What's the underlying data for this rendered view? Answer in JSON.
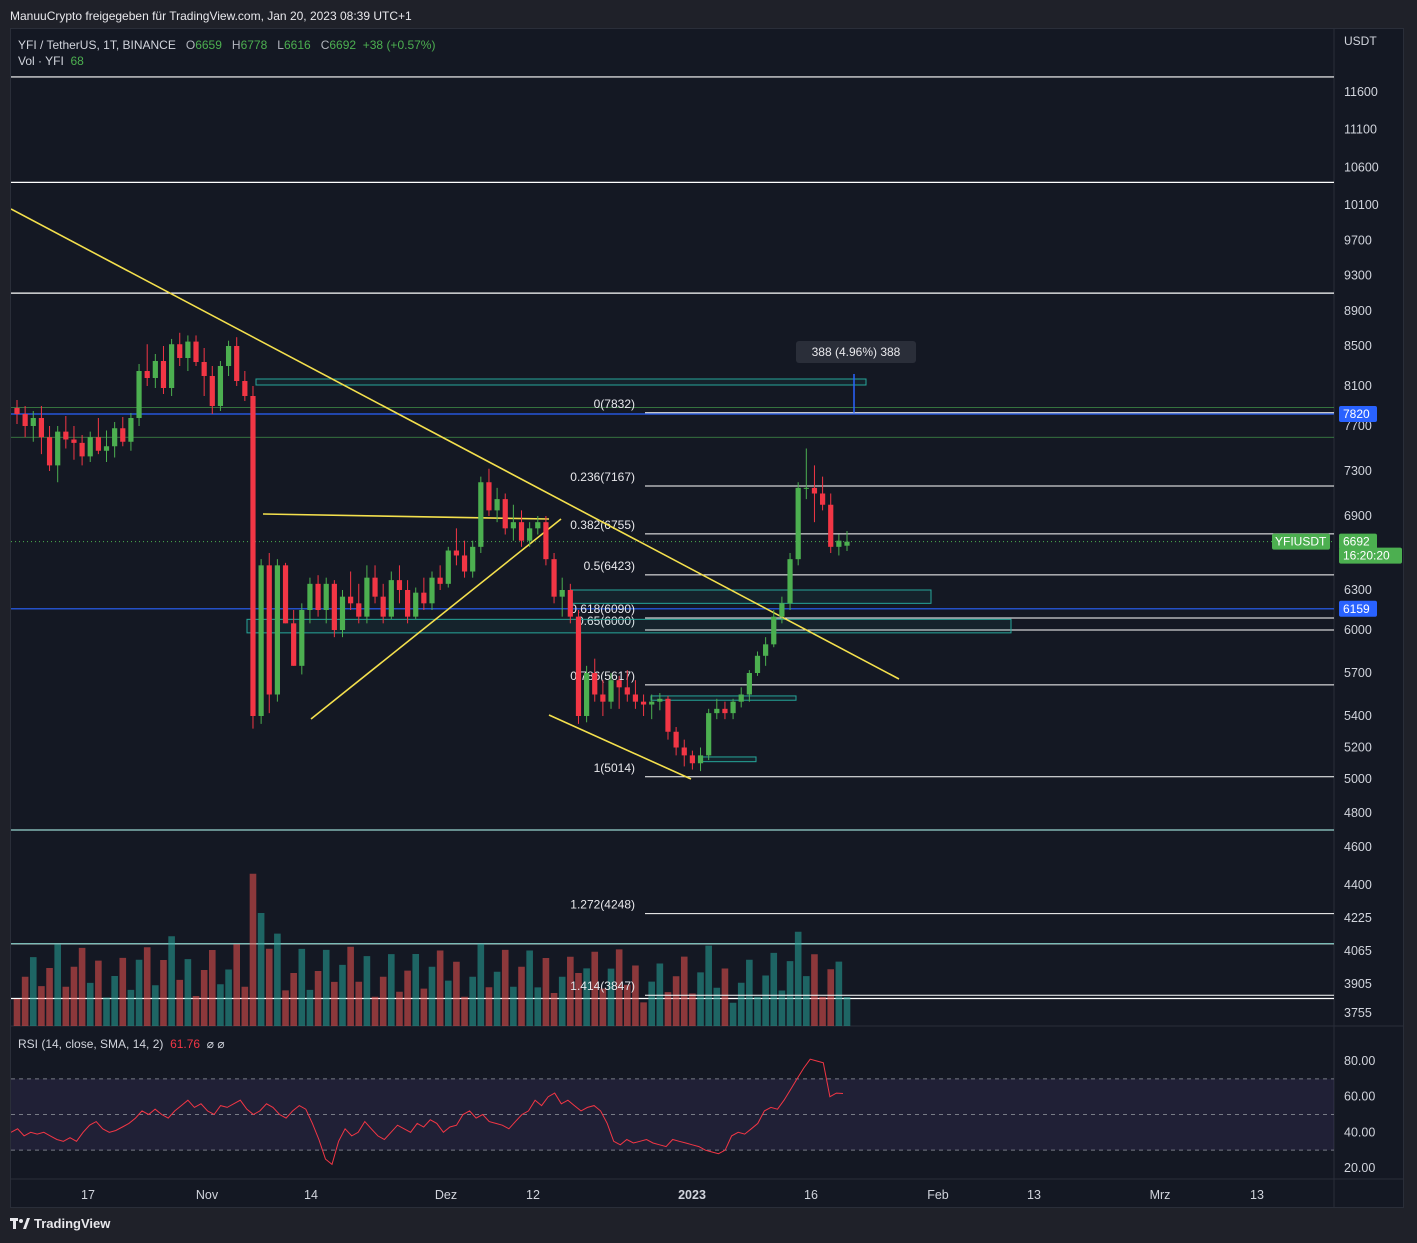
{
  "header": {
    "caption": "ManuuCrypto freigegeben für TradingView.com, Jan 20, 2023 08:39 UTC+1"
  },
  "legend": {
    "symbol": "YFI / TetherUS, 1T, BINANCE",
    "o_label": "O",
    "o_value": "6659",
    "h_label": "H",
    "h_value": "6778",
    "l_label": "L",
    "l_value": "6616",
    "c_label": "C",
    "c_value": "6692",
    "change": "+38 (+0.57%)",
    "vol_label": "Vol · YFI",
    "vol_value": "68",
    "rsi_label": "RSI (14, close, SMA, 14, 2)",
    "rsi_value": "61.76",
    "rsi_extra": "⌀  ⌀"
  },
  "footer": {
    "brand": "TradingView"
  },
  "colors": {
    "up": "#26a69a",
    "down": "#ef5350",
    "candle_up": "#4caf50",
    "candle_down": "#f23645",
    "trendline": "#f4e04d",
    "rsi": "#f23645",
    "level_blue": "#2962ff"
  },
  "chart_data": {
    "type": "candlestick",
    "symbol": "YFIUSDT",
    "quote": "USDT",
    "timeframe": "1T",
    "exchange": "BINANCE",
    "y_axis_ticks": [
      "11600",
      "11100",
      "10600",
      "10100",
      "9700",
      "9300",
      "8900",
      "8500",
      "8100",
      "7700",
      "7300",
      "6900",
      "6300",
      "6000",
      "5700",
      "5400",
      "5200",
      "5000",
      "4800",
      "4600",
      "4400",
      "4225",
      "4065",
      "3905",
      "3755"
    ],
    "x_axis_ticks": [
      "17",
      "Nov",
      "14",
      "Dez",
      "12",
      "2023",
      "16",
      "Feb",
      "13",
      "Mrz",
      "13"
    ],
    "ohlc": [
      [
        7880,
        7960,
        7720,
        7820
      ],
      [
        7820,
        7900,
        7600,
        7700
      ],
      [
        7700,
        7850,
        7560,
        7780
      ],
      [
        7780,
        7900,
        7450,
        7600
      ],
      [
        7600,
        7700,
        7300,
        7350
      ],
      [
        7350,
        7700,
        7200,
        7650
      ],
      [
        7650,
        7800,
        7500,
        7580
      ],
      [
        7580,
        7700,
        7400,
        7550
      ],
      [
        7550,
        7620,
        7350,
        7430
      ],
      [
        7430,
        7650,
        7380,
        7600
      ],
      [
        7600,
        7780,
        7450,
        7480
      ],
      [
        7480,
        7660,
        7380,
        7520
      ],
      [
        7520,
        7740,
        7420,
        7680
      ],
      [
        7680,
        7790,
        7520,
        7560
      ],
      [
        7560,
        7830,
        7480,
        7780
      ],
      [
        7780,
        8320,
        7700,
        8250
      ],
      [
        8250,
        8520,
        8100,
        8180
      ],
      [
        8180,
        8420,
        8080,
        8350
      ],
      [
        8350,
        8500,
        8020,
        8080
      ],
      [
        8080,
        8580,
        8000,
        8520
      ],
      [
        8520,
        8650,
        8300,
        8380
      ],
      [
        8380,
        8620,
        8250,
        8550
      ],
      [
        8550,
        8620,
        8300,
        8340
      ],
      [
        8340,
        8480,
        8000,
        8200
      ],
      [
        8200,
        8300,
        7820,
        7900
      ],
      [
        7900,
        8350,
        7850,
        8300
      ],
      [
        8300,
        8560,
        8200,
        8500
      ],
      [
        8500,
        8600,
        8100,
        8150
      ],
      [
        8150,
        8250,
        7950,
        8000
      ],
      [
        8000,
        8100,
        5320,
        5400
      ],
      [
        5400,
        6550,
        5350,
        6500
      ],
      [
        6500,
        6600,
        5420,
        5550
      ],
      [
        5550,
        6550,
        5500,
        6500
      ],
      [
        6500,
        6520,
        6050,
        6050
      ],
      [
        6050,
        6150,
        5750,
        5750
      ],
      [
        5750,
        6200,
        5690,
        6150
      ],
      [
        6150,
        6400,
        6050,
        6350
      ],
      [
        6350,
        6420,
        6100,
        6150
      ],
      [
        6150,
        6400,
        6050,
        6350
      ],
      [
        6350,
        6380,
        5950,
        6000
      ],
      [
        6000,
        6300,
        5950,
        6250
      ],
      [
        6250,
        6450,
        6150,
        6200
      ],
      [
        6200,
        6350,
        6050,
        6100
      ],
      [
        6100,
        6500,
        6050,
        6400
      ],
      [
        6400,
        6500,
        6200,
        6250
      ],
      [
        6250,
        6350,
        6050,
        6100
      ],
      [
        6100,
        6450,
        6080,
        6380
      ],
      [
        6380,
        6500,
        6200,
        6300
      ],
      [
        6300,
        6380,
        6050,
        6100
      ],
      [
        6100,
        6320,
        6080,
        6280
      ],
      [
        6280,
        6400,
        6150,
        6200
      ],
      [
        6200,
        6450,
        6150,
        6400
      ],
      [
        6400,
        6500,
        6300,
        6350
      ],
      [
        6350,
        6650,
        6320,
        6620
      ],
      [
        6620,
        6800,
        6500,
        6580
      ],
      [
        6580,
        6700,
        6400,
        6450
      ],
      [
        6450,
        6700,
        6400,
        6650
      ],
      [
        6650,
        7250,
        6600,
        7200
      ],
      [
        7200,
        7320,
        6900,
        6950
      ],
      [
        6950,
        7150,
        6850,
        7050
      ],
      [
        7050,
        7100,
        6750,
        6800
      ],
      [
        6800,
        7000,
        6700,
        6850
      ],
      [
        6850,
        6950,
        6650,
        6700
      ],
      [
        6700,
        6850,
        6650,
        6800
      ],
      [
        6800,
        6900,
        6750,
        6850
      ],
      [
        6850,
        6900,
        6500,
        6550
      ],
      [
        6550,
        6600,
        6200,
        6250
      ],
      [
        6250,
        6400,
        6100,
        6300
      ],
      [
        6300,
        6350,
        6050,
        6100
      ],
      [
        6100,
        6150,
        5350,
        5400
      ],
      [
        5400,
        5750,
        5360,
        5700
      ],
      [
        5700,
        5800,
        5500,
        5550
      ],
      [
        5550,
        5650,
        5400,
        5500
      ],
      [
        5500,
        5700,
        5450,
        5650
      ],
      [
        5650,
        5680,
        5450,
        5600
      ],
      [
        5600,
        5720,
        5500,
        5550
      ],
      [
        5550,
        5650,
        5450,
        5500
      ],
      [
        5500,
        5550,
        5400,
        5480
      ],
      [
        5480,
        5550,
        5380,
        5500
      ],
      [
        5500,
        5560,
        5440,
        5520
      ],
      [
        5520,
        5540,
        5250,
        5300
      ],
      [
        5300,
        5330,
        5150,
        5200
      ],
      [
        5200,
        5250,
        5080,
        5150
      ],
      [
        5150,
        5180,
        5060,
        5100
      ],
      [
        5100,
        5200,
        5050,
        5150
      ],
      [
        5150,
        5450,
        5120,
        5420
      ],
      [
        5420,
        5520,
        5380,
        5450
      ],
      [
        5450,
        5500,
        5380,
        5420
      ],
      [
        5420,
        5520,
        5380,
        5500
      ],
      [
        5500,
        5600,
        5460,
        5550
      ],
      [
        5550,
        5720,
        5500,
        5700
      ],
      [
        5700,
        5850,
        5680,
        5820
      ],
      [
        5820,
        5950,
        5750,
        5900
      ],
      [
        5900,
        6150,
        5880,
        6100
      ],
      [
        6100,
        6250,
        6050,
        6200
      ],
      [
        6200,
        6600,
        6150,
        6550
      ],
      [
        6550,
        7200,
        6500,
        7150
      ],
      [
        7150,
        7500,
        7050,
        7150
      ],
      [
        7150,
        7350,
        6850,
        7100
      ],
      [
        7100,
        7250,
        6950,
        7000
      ],
      [
        7000,
        7100,
        6600,
        6650
      ],
      [
        6650,
        6750,
        6580,
        6700
      ],
      [
        6659,
        6778,
        6616,
        6692
      ]
    ],
    "volume": [
      68
    ],
    "horizontal_levels": [
      {
        "label": "",
        "price": 11800
      },
      {
        "label": "",
        "price": 10400
      },
      {
        "label": "",
        "price": 9100
      },
      {
        "label": "",
        "price": 4700
      },
      {
        "label": "",
        "price": 4100
      },
      {
        "label": "",
        "price": 3830
      }
    ],
    "price_labels": [
      {
        "text": "7820",
        "price": 7820,
        "color": "#2962ff"
      },
      {
        "text": "6159",
        "price": 6159,
        "color": "#2962ff"
      },
      {
        "text": "6692",
        "price": 6692,
        "color": "#4caf50"
      },
      {
        "text": "16:20:20",
        "price": 6692,
        "color": "#4caf50"
      }
    ],
    "symbol_tag": "YFIUSDT",
    "fibonacci": [
      {
        "label": "0(7832)",
        "price": 7832
      },
      {
        "label": "0.236(7167)",
        "price": 7167
      },
      {
        "label": "0.382(6755)",
        "price": 6755
      },
      {
        "label": "0.5(6423)",
        "price": 6423
      },
      {
        "label": "0.618(6090)",
        "price": 6090
      },
      {
        "label": "0.65(6000)",
        "price": 6000
      },
      {
        "label": "0.786(5617)",
        "price": 5617
      },
      {
        "label": "1(5014)",
        "price": 5014
      },
      {
        "label": "1.272(4248)",
        "price": 4248
      },
      {
        "label": "1.414(3847)",
        "price": 3847
      }
    ],
    "measure_tool": "388 (4.96%) 388",
    "rsi": {
      "ticks": [
        "80.00",
        "60.00",
        "40.00",
        "20.00"
      ],
      "upper_band": 70,
      "lower_band": 30,
      "last": 61.76,
      "values": [
        40,
        42,
        38,
        40,
        39,
        40,
        38,
        36,
        35,
        37,
        35,
        40,
        44,
        46,
        42,
        40,
        41,
        43,
        45,
        48,
        52,
        50,
        53,
        50,
        48,
        52,
        55,
        58,
        54,
        56,
        52,
        50,
        55,
        54,
        56,
        58,
        53,
        50,
        52,
        56,
        54,
        50,
        48,
        52,
        55,
        53,
        45,
        36,
        25,
        22,
        35,
        42,
        38,
        40,
        46,
        42,
        38,
        36,
        40,
        44,
        42,
        40,
        45,
        43,
        47,
        45,
        40,
        43,
        44,
        50,
        52,
        48,
        50,
        46,
        45,
        44,
        42,
        46,
        50,
        52,
        58,
        55,
        60,
        62,
        56,
        58,
        55,
        52,
        54,
        55,
        52,
        45,
        35,
        33,
        36,
        34,
        35,
        36,
        34,
        33,
        32,
        36,
        35,
        34,
        33,
        32,
        30,
        29,
        28,
        30,
        38,
        40,
        39,
        42,
        45,
        52,
        54,
        53,
        58,
        64,
        70,
        76,
        81,
        80,
        79,
        60,
        62,
        61.76
      ]
    }
  }
}
